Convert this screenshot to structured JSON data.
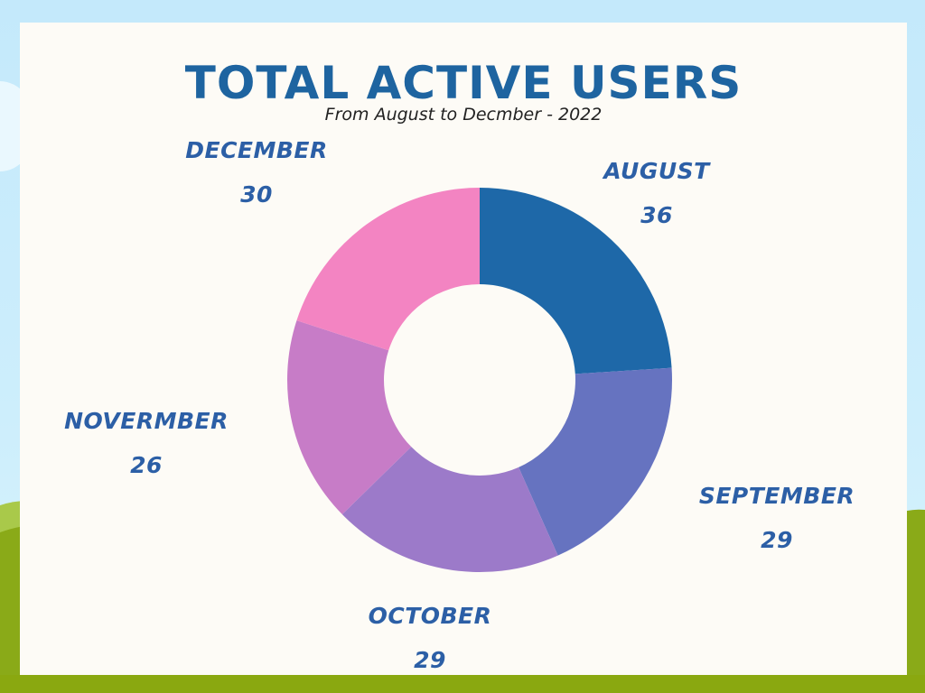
{
  "chart_data": {
    "type": "pie",
    "title": "TOTAL ACTIVE USERS",
    "subtitle": "From August to Decmber - 2022",
    "categories": [
      "AUGUST",
      "SEPTEMBER",
      "OCTOBER",
      "NOVERMBER",
      "DECEMBER"
    ],
    "values": [
      36,
      29,
      29,
      26,
      30
    ],
    "value_labels": [
      "36",
      "29",
      "29",
      "26",
      "30"
    ],
    "colors": [
      "#1e68a8",
      "#6673c0",
      "#9c7ac9",
      "#c77cc7",
      "#f384c2"
    ],
    "label_color": "#2c5fa6",
    "style": "donut",
    "legend": "none"
  }
}
